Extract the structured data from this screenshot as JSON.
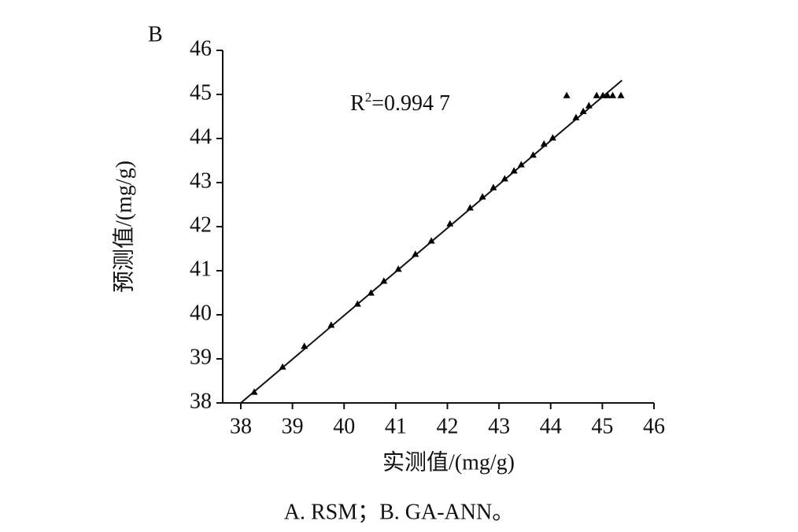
{
  "chart_data": {
    "type": "scatter",
    "panel_label": "B",
    "xlabel": "实测值/(mg/g)",
    "ylabel": "预测值/(mg/g)",
    "annotation": [
      "R",
      "2",
      "=0.994 7"
    ],
    "x": [
      38.26,
      38.81,
      39.23,
      39.75,
      40.26,
      40.52,
      40.77,
      41.05,
      41.38,
      41.69,
      42.05,
      42.44,
      42.68,
      42.89,
      43.11,
      43.29,
      43.43,
      43.66,
      43.87,
      44.04,
      44.49,
      44.63,
      44.74,
      44.31,
      44.89,
      45.01,
      45.1,
      45.2,
      45.36
    ],
    "values": [
      38.25,
      38.82,
      39.29,
      39.77,
      40.25,
      40.5,
      40.77,
      41.04,
      41.38,
      41.68,
      42.07,
      42.43,
      42.68,
      42.89,
      43.09,
      43.27,
      43.41,
      43.63,
      43.88,
      44.02,
      44.48,
      44.62,
      44.75,
      44.98,
      44.98,
      44.98,
      44.98,
      44.98,
      44.98
    ],
    "color": "#000000",
    "fit_line": {
      "x": [
        38,
        45.38
      ],
      "y": [
        38,
        45.32
      ]
    },
    "xlim": [
      37.65,
      46
    ],
    "ylim": [
      38,
      46
    ],
    "xticks": [
      38,
      39,
      40,
      41,
      42,
      43,
      44,
      45,
      46
    ],
    "yticks": [
      38,
      39,
      40,
      41,
      42,
      43,
      44,
      45,
      46
    ]
  },
  "caption": "A. RSM；B. GA-ANN。"
}
